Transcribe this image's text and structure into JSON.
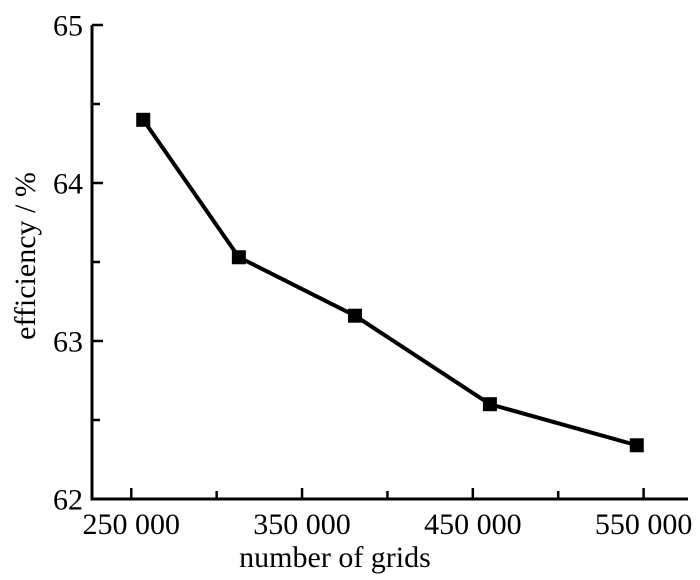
{
  "chart_data": {
    "type": "line",
    "title": "",
    "xlabel": "number of grids",
    "ylabel": "efficiency / %",
    "series": [
      {
        "name": "efficiency",
        "x": [
          257000,
          313000,
          381000,
          460000,
          546000
        ],
        "y": [
          64.4,
          63.53,
          63.16,
          62.6,
          62.34
        ]
      }
    ],
    "xlim": [
      227000,
      576000
    ],
    "ylim": [
      62,
      65
    ],
    "x_ticks": [
      {
        "value": 250000,
        "label": "250 000"
      },
      {
        "value": 350000,
        "label": "350 000"
      },
      {
        "value": 450000,
        "label": "450 000"
      },
      {
        "value": 550000,
        "label": "550 000"
      }
    ],
    "x_minor_ticks": [
      300000,
      400000,
      500000
    ],
    "y_ticks": [
      {
        "value": 62,
        "label": "62"
      },
      {
        "value": 63,
        "label": "63"
      },
      {
        "value": 64,
        "label": "64"
      },
      {
        "value": 65,
        "label": "65"
      }
    ],
    "y_minor_ticks": [
      62.5,
      63.5,
      64.5
    ],
    "grid": false,
    "legend": false,
    "marker": "square",
    "marker_size": 14,
    "colors": {
      "line": "#000000",
      "marker": "#000000",
      "axis": "#000000",
      "text": "#000000",
      "background": "#ffffff"
    }
  }
}
